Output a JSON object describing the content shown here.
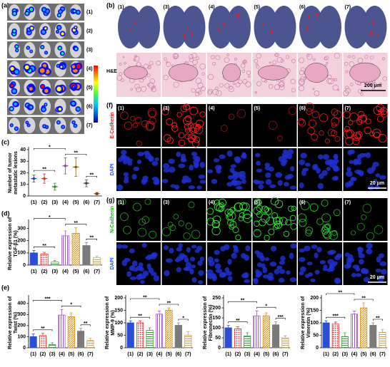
{
  "chart_data": [
    {
      "type": "dot",
      "ylabel": [
        "Number of tumor",
        "metastatic lesions"
      ],
      "categories": [
        "(1)",
        "(2)",
        "(3)",
        "(4)",
        "(5)",
        "(6)",
        "(7)"
      ],
      "values": [
        15,
        15,
        8,
        26,
        25,
        11,
        2
      ],
      "errors": [
        3,
        4,
        3,
        7,
        8,
        3,
        1
      ],
      "colors": [
        "#1f3fbf",
        "#c0392b",
        "#2e8b2e",
        "#8e44ad",
        "#8b5a00",
        "#404040",
        "#7b3f00"
      ],
      "ylim": [
        0,
        40
      ],
      "yticks": [
        0,
        10,
        20,
        30,
        40
      ],
      "annotations": [
        {
          "label": "**",
          "from": "(1)",
          "to": "(3)"
        },
        {
          "label": "**",
          "from": "(6)",
          "to": "(7)"
        },
        {
          "label": "**",
          "from": "(4)",
          "to": "(6)"
        },
        {
          "label": "*",
          "from": "(1)",
          "to": "(4)"
        }
      ]
    },
    {
      "type": "bar",
      "ylabel": [
        "Relative expression of",
        "TGF-β1 (%)"
      ],
      "categories": [
        "(1)",
        "(2)",
        "(3)",
        "(4)",
        "(5)",
        "(6)",
        "(7)"
      ],
      "values": [
        100,
        90,
        25,
        240,
        260,
        160,
        60
      ],
      "errors": [
        20,
        15,
        12,
        40,
        45,
        25,
        12
      ],
      "colors": [
        "#2a4fd6",
        "#e03030",
        "#3a9a3a",
        "#9b59d0",
        "#e08a00",
        "#7a7a7a",
        "#c8a060"
      ],
      "hatches": [
        "solid",
        "dots",
        "hlines",
        "vlines",
        "hatch",
        "solid",
        "hlines"
      ],
      "ylim": [
        0,
        350
      ],
      "yticks": [
        0,
        100,
        200,
        300
      ],
      "annotations": [
        {
          "label": "**",
          "from": "(1)",
          "to": "(3)"
        },
        {
          "label": "**",
          "from": "(6)",
          "to": "(7)"
        },
        {
          "label": "**",
          "from": "(4)",
          "to": "(6)"
        },
        {
          "label": "*",
          "from": "(1)",
          "to": "(4)"
        }
      ]
    },
    {
      "type": "bar",
      "ylabel": [
        "Relative expression of",
        "Twist (%)"
      ],
      "categories": [
        "(1)",
        "(2)",
        "(3)",
        "(4)",
        "(5)",
        "(6)",
        "(7)"
      ],
      "values": [
        100,
        110,
        30,
        295,
        280,
        150,
        65
      ],
      "errors": [
        25,
        20,
        15,
        50,
        35,
        25,
        20
      ],
      "colors": [
        "#2a4fd6",
        "#e03030",
        "#3a9a3a",
        "#9b59d0",
        "#e08a00",
        "#7a7a7a",
        "#c8a060"
      ],
      "hatches": [
        "solid",
        "dots",
        "hlines",
        "vlines",
        "hatch",
        "solid",
        "hlines"
      ],
      "ylim": [
        0,
        450
      ],
      "yticks": [
        0,
        100,
        200,
        300,
        400
      ],
      "annotations": [
        {
          "label": "**",
          "from": "(1)",
          "to": "(3)"
        },
        {
          "label": "**",
          "from": "(6)",
          "to": "(7)"
        },
        {
          "label": "*",
          "from": "(4)",
          "to": "(6)"
        },
        {
          "label": "***",
          "from": "(1)",
          "to": "(4)"
        }
      ]
    },
    {
      "type": "bar",
      "ylabel": [
        "Relative expression of",
        "MMP-9 (%)"
      ],
      "categories": [
        "(1)",
        "(2)",
        "(3)",
        "(4)",
        "(5)",
        "(6)",
        "(7)"
      ],
      "values": [
        100,
        100,
        70,
        135,
        150,
        90,
        50
      ],
      "errors": [
        8,
        8,
        10,
        12,
        10,
        10,
        15
      ],
      "colors": [
        "#2a4fd6",
        "#e03030",
        "#3a9a3a",
        "#9b59d0",
        "#e08a00",
        "#7a7a7a",
        "#c8a060"
      ],
      "hatches": [
        "solid",
        "dots",
        "hlines",
        "vlines",
        "hatch",
        "solid",
        "hlines"
      ],
      "ylim": [
        0,
        200
      ],
      "yticks": [
        0,
        50,
        100,
        150,
        200
      ],
      "annotations": [
        {
          "label": "**",
          "from": "(1)",
          "to": "(3)"
        },
        {
          "label": "*",
          "from": "(6)",
          "to": "(7)"
        },
        {
          "label": "**",
          "from": "(4)",
          "to": "(6)"
        },
        {
          "label": "**",
          "from": "(1)",
          "to": "(4)"
        }
      ]
    },
    {
      "type": "bar",
      "ylabel": [
        "Relative expression of",
        "Fibronectin (%)"
      ],
      "categories": [
        "(1)",
        "(2)",
        "(3)",
        "(4)",
        "(5)",
        "(6)",
        "(7)"
      ],
      "values": [
        100,
        95,
        60,
        160,
        160,
        115,
        50
      ],
      "errors": [
        12,
        10,
        15,
        25,
        15,
        15,
        10
      ],
      "colors": [
        "#2a4fd6",
        "#e03030",
        "#3a9a3a",
        "#9b59d0",
        "#e08a00",
        "#7a7a7a",
        "#c8a060"
      ],
      "hatches": [
        "solid",
        "dots",
        "hlines",
        "vlines",
        "hatch",
        "solid",
        "hlines"
      ],
      "ylim": [
        0,
        250
      ],
      "yticks": [
        0,
        50,
        100,
        150,
        200,
        250
      ],
      "annotations": [
        {
          "label": "**",
          "from": "(1)",
          "to": "(3)"
        },
        {
          "label": "***",
          "from": "(6)",
          "to": "(7)"
        },
        {
          "label": "*",
          "from": "(4)",
          "to": "(6)"
        },
        {
          "label": "**",
          "from": "(1)",
          "to": "(4)"
        }
      ]
    },
    {
      "type": "bar",
      "ylabel": [
        "Relative expression of",
        "Vimentin (%)"
      ],
      "categories": [
        "(1)",
        "(2)",
        "(3)",
        "(4)",
        "(5)",
        "(6)",
        "(7)"
      ],
      "values": [
        100,
        95,
        45,
        135,
        160,
        90,
        62
      ],
      "errors": [
        8,
        8,
        15,
        12,
        20,
        10,
        12
      ],
      "colors": [
        "#2a4fd6",
        "#e03030",
        "#3a9a3a",
        "#9b59d0",
        "#e08a00",
        "#7a7a7a",
        "#c8a060"
      ],
      "hatches": [
        "solid",
        "dots",
        "hlines",
        "vlines",
        "hatch",
        "solid",
        "hlines"
      ],
      "ylim": [
        0,
        200
      ],
      "yticks": [
        0,
        50,
        100,
        150,
        200
      ],
      "annotations": [
        {
          "label": "***",
          "from": "(1)",
          "to": "(3)"
        },
        {
          "label": "**",
          "from": "(6)",
          "to": "(7)"
        },
        {
          "label": "**",
          "from": "(4)",
          "to": "(6)"
        },
        {
          "label": "**",
          "from": "(1)",
          "to": "(4)"
        }
      ]
    }
  ],
  "figure": {
    "panel_labels": {
      "a": "(a)",
      "b": "(b)",
      "c": "(c)",
      "d": "(d)",
      "e": "(e)",
      "f": "(f)",
      "g": "(g)"
    },
    "imaging": {
      "groups": [
        "(1)",
        "(2)",
        "(3)",
        "(4)",
        "(5)",
        "(6)",
        "(7)"
      ]
    },
    "lungs": {
      "groups": [
        "(1)",
        "(3)",
        "(4)",
        "(5)",
        "(6)",
        "(7)"
      ],
      "stain": "H&E",
      "scale_bar": "200 μm"
    },
    "ecad": {
      "groups": [
        "(1)",
        "(3)",
        "(4)",
        "(5)",
        "(6)",
        "(7)"
      ],
      "rows": [
        "E-Cadherin",
        "DAPI"
      ],
      "scale_bar": "20 μm"
    },
    "ncad": {
      "groups": [
        "(1)",
        "(3)",
        "(4)",
        "(5)",
        "(6)",
        "(7)"
      ],
      "rows": [
        "N-Cadherin",
        "DAPI"
      ],
      "scale_bar": "20 μm"
    }
  }
}
